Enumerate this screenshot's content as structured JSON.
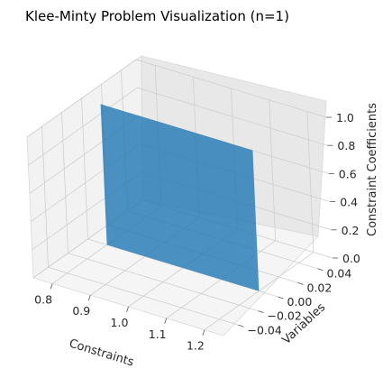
{
  "chart_data": {
    "type": "3d-surface",
    "title": "Klee-Minty Problem Visualization (n=1)",
    "xlabel": "Constraints",
    "ylabel": "Variables",
    "zlabel": "Constraint Coefficients",
    "xlim": [
      0.75,
      1.25
    ],
    "ylim": [
      -0.055,
      0.055
    ],
    "zlim": [
      0.0,
      1.0
    ],
    "x_ticks": [
      "0.8",
      "0.9",
      "1.0",
      "1.1",
      "1.2"
    ],
    "y_ticks": [
      "−0.04",
      "−0.02",
      "0.00",
      "0.02",
      "0.04"
    ],
    "z_ticks": [
      "0.0",
      "0.2",
      "0.4",
      "0.6",
      "0.8",
      "1.0"
    ],
    "surface": {
      "x": [
        0.8,
        1.2
      ],
      "y": [
        0.0,
        0.0
      ],
      "z": [
        0.0,
        1.0
      ],
      "color": "#1f77b4"
    },
    "grid": true
  }
}
